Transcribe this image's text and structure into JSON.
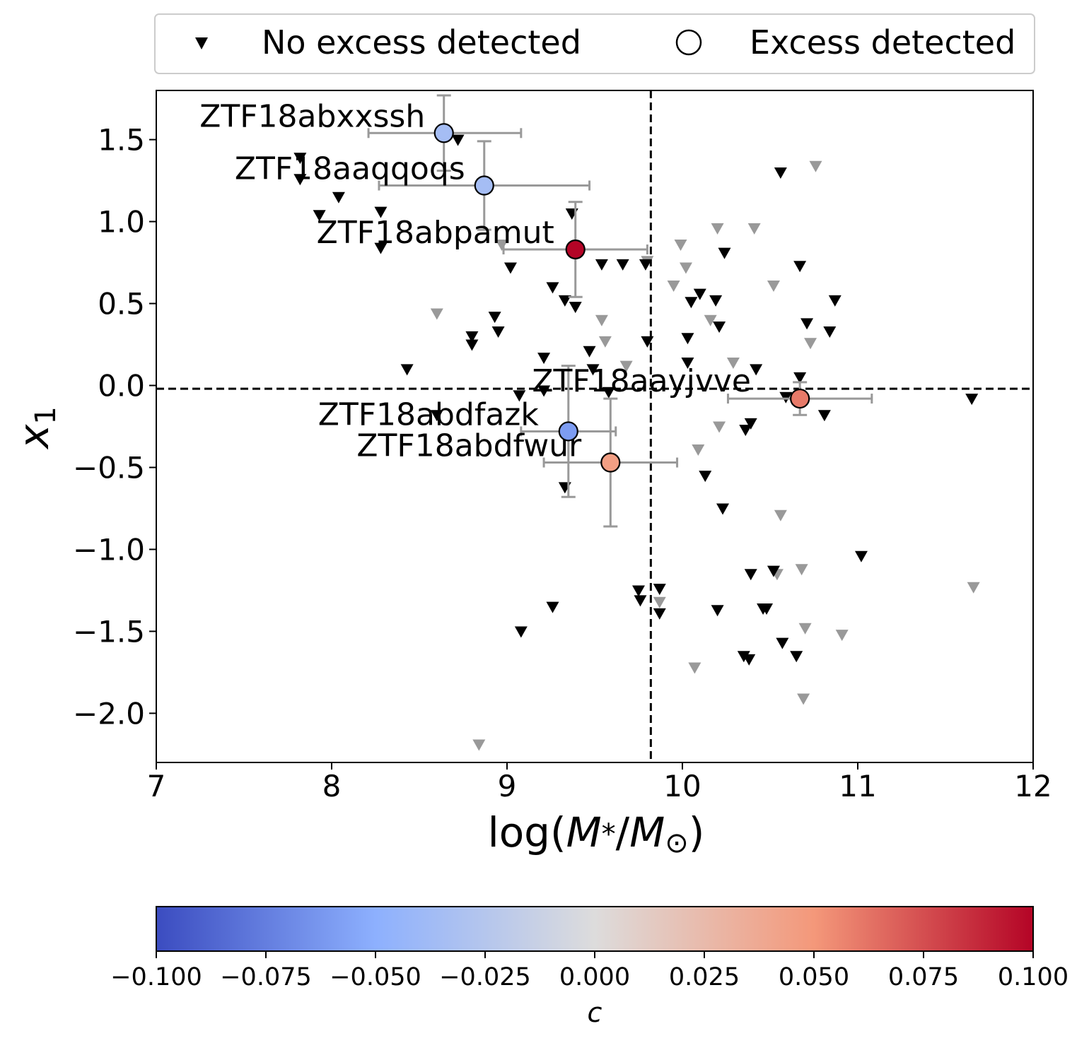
{
  "chart_data": {
    "type": "scatter",
    "xlabel": "log(M*/M⊙)",
    "ylabel": "x1",
    "xlim": [
      7,
      12
    ],
    "ylim": [
      -2.3,
      1.8
    ],
    "x_ticks": [
      7,
      8,
      9,
      10,
      11,
      12
    ],
    "y_ticks": [
      -2.0,
      -1.5,
      -1.0,
      -0.5,
      0.0,
      0.5,
      1.0,
      1.5
    ],
    "x_tick_labels": [
      "7",
      "8",
      "9",
      "10",
      "11",
      "12"
    ],
    "y_tick_labels": [
      "−2.0",
      "−1.5",
      "−1.0",
      "−0.5",
      "0.0",
      "0.5",
      "1.0",
      "1.5"
    ],
    "reference_lines": {
      "vertical_x": 9.82,
      "horizontal_y": -0.02
    },
    "legend": {
      "location": "top",
      "entries": [
        {
          "label": "No excess detected",
          "marker": "triangle-down"
        },
        {
          "label": "Excess detected",
          "marker": "circle"
        }
      ]
    },
    "colorbar": {
      "label": "c",
      "range": [
        -0.1,
        0.1
      ],
      "colormap": "coolwarm",
      "stops": [
        "#3b4cc0",
        "#8db0fe",
        "#dddcdc",
        "#f4987a",
        "#b40426"
      ],
      "ticks": [
        -0.1,
        -0.075,
        -0.05,
        -0.025,
        0.0,
        0.025,
        0.05,
        0.075,
        0.1
      ],
      "tick_labels": [
        "−0.100",
        "−0.075",
        "−0.050",
        "−0.025",
        "0.000",
        "0.025",
        "0.050",
        "0.075",
        "0.100"
      ]
    },
    "series": [
      {
        "name": "No excess detected (black)",
        "marker": "triangle-down",
        "color": "#000000",
        "points": [
          [
            7.82,
            1.39
          ],
          [
            7.82,
            1.26
          ],
          [
            7.93,
            1.04
          ],
          [
            8.04,
            1.15
          ],
          [
            8.28,
            1.06
          ],
          [
            8.28,
            0.84
          ],
          [
            8.43,
            0.1
          ],
          [
            8.6,
            -0.18
          ],
          [
            8.72,
            1.5
          ],
          [
            8.8,
            0.3
          ],
          [
            8.8,
            0.25
          ],
          [
            8.93,
            0.42
          ],
          [
            8.95,
            0.33
          ],
          [
            9.02,
            0.72
          ],
          [
            9.07,
            -0.06
          ],
          [
            9.08,
            -1.5
          ],
          [
            9.21,
            0.17
          ],
          [
            9.21,
            -0.03
          ],
          [
            9.26,
            0.6
          ],
          [
            9.26,
            -1.35
          ],
          [
            9.33,
            0.52
          ],
          [
            9.33,
            -0.62
          ],
          [
            9.37,
            1.05
          ],
          [
            9.39,
            0.48
          ],
          [
            9.47,
            0.21
          ],
          [
            9.49,
            0.1
          ],
          [
            9.54,
            0.74
          ],
          [
            9.58,
            -0.04
          ],
          [
            9.66,
            0.74
          ],
          [
            9.75,
            -1.25
          ],
          [
            9.76,
            -1.31
          ],
          [
            9.79,
            0.74
          ],
          [
            9.8,
            0.27
          ],
          [
            9.87,
            -1.24
          ],
          [
            9.87,
            -1.39
          ],
          [
            10.03,
            0.29
          ],
          [
            10.03,
            0.14
          ],
          [
            10.05,
            0.51
          ],
          [
            10.1,
            0.56
          ],
          [
            10.13,
            -0.55
          ],
          [
            10.19,
            0.52
          ],
          [
            10.2,
            -1.37
          ],
          [
            10.21,
            0.36
          ],
          [
            10.23,
            -0.75
          ],
          [
            10.24,
            0.81
          ],
          [
            10.35,
            -1.65
          ],
          [
            10.36,
            -0.27
          ],
          [
            10.38,
            -1.67
          ],
          [
            10.39,
            -0.23
          ],
          [
            10.39,
            -1.15
          ],
          [
            10.42,
            0.1
          ],
          [
            10.46,
            -1.36
          ],
          [
            10.48,
            -1.36
          ],
          [
            10.52,
            -1.13
          ],
          [
            10.56,
            1.3
          ],
          [
            10.57,
            -1.57
          ],
          [
            10.59,
            -0.07
          ],
          [
            10.65,
            -1.65
          ],
          [
            10.67,
            0.73
          ],
          [
            10.67,
            0.05
          ],
          [
            10.71,
            0.38
          ],
          [
            10.81,
            -0.18
          ],
          [
            10.84,
            0.33
          ],
          [
            10.87,
            0.52
          ],
          [
            11.02,
            -1.04
          ],
          [
            11.65,
            -0.08
          ]
        ]
      },
      {
        "name": "No excess detected (grey)",
        "marker": "triangle-down",
        "color": "#999999",
        "points": [
          [
            8.6,
            0.44
          ],
          [
            8.84,
            -2.19
          ],
          [
            8.97,
            0.86
          ],
          [
            9.54,
            0.4
          ],
          [
            9.56,
            0.27
          ],
          [
            9.68,
            0.12
          ],
          [
            9.8,
            0.76
          ],
          [
            9.87,
            -1.32
          ],
          [
            9.95,
            0.61
          ],
          [
            9.99,
            0.86
          ],
          [
            10.02,
            0.72
          ],
          [
            10.07,
            -1.72
          ],
          [
            10.09,
            -0.39
          ],
          [
            10.16,
            0.4
          ],
          [
            10.2,
            0.96
          ],
          [
            10.21,
            -0.25
          ],
          [
            10.29,
            0.14
          ],
          [
            10.41,
            0.96
          ],
          [
            10.52,
            0.61
          ],
          [
            10.54,
            -1.15
          ],
          [
            10.56,
            -0.79
          ],
          [
            10.68,
            -1.12
          ],
          [
            10.69,
            -1.91
          ],
          [
            10.7,
            -1.48
          ],
          [
            10.73,
            0.26
          ],
          [
            10.76,
            1.34
          ],
          [
            10.91,
            -1.52
          ],
          [
            11.66,
            -1.23
          ]
        ]
      },
      {
        "name": "Excess detected",
        "marker": "circle",
        "points": [
          {
            "name": "ZTF18abxxssh",
            "x": 8.64,
            "y": 1.54,
            "c": -0.035,
            "xerr": [
              0.43,
              0.44
            ],
            "yerr": [
              0.23,
              0.23
            ]
          },
          {
            "name": "ZTF18aaqqoqs",
            "x": 8.87,
            "y": 1.22,
            "c": -0.035,
            "xerr": [
              0.6,
              0.6
            ],
            "yerr": [
              0.27,
              0.27
            ]
          },
          {
            "name": "ZTF18abpamut",
            "x": 9.39,
            "y": 0.83,
            "c": 0.1,
            "xerr": [
              0.41,
              0.41
            ],
            "yerr": [
              0.29,
              0.29
            ]
          },
          {
            "name": "ZTF18aayjvve",
            "x": 10.67,
            "y": -0.08,
            "c": 0.06,
            "xerr": [
              0.41,
              0.41
            ],
            "yerr": [
              0.1,
              0.1
            ]
          },
          {
            "name": "ZTF18abdfazk",
            "x": 9.35,
            "y": -0.28,
            "c": -0.06,
            "xerr": [
              0.27,
              0.27
            ],
            "yerr": [
              0.4,
              0.4
            ]
          },
          {
            "name": "ZTF18abdfwur",
            "x": 9.59,
            "y": -0.47,
            "c": 0.045,
            "xerr": [
              0.38,
              0.38
            ],
            "yerr": [
              0.39,
              0.39
            ]
          }
        ]
      }
    ]
  }
}
